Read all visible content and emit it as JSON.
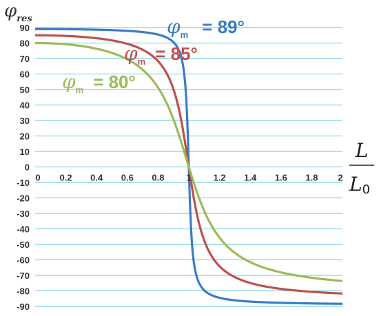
{
  "chart_data": {
    "type": "line",
    "ylabel": {
      "symbol": "φ",
      "subscript": "res"
    },
    "xlabel": {
      "numerator": "L",
      "denominator": "L",
      "denominator_subscript": "0"
    },
    "xlim": [
      0,
      2
    ],
    "ylim": [
      -90,
      90
    ],
    "x_ticks": [
      "0",
      "0.2",
      "0.4",
      "0.6",
      "0.8",
      "1",
      "1.2",
      "1.4",
      "1.6",
      "1.8",
      "2"
    ],
    "y_ticks": [
      "90",
      "80",
      "70",
      "60",
      "50",
      "40",
      "30",
      "20",
      "10",
      "0",
      "-10",
      "-20",
      "-30",
      "-40",
      "-50",
      "-60",
      "-70",
      "-80",
      "-90"
    ],
    "grid": true,
    "series": [
      {
        "name": "φm = 89°",
        "label_symbol": "φ",
        "label_subscript": "m",
        "label_value": "= 89°",
        "phi_m": 89,
        "color": "#3a7cc4",
        "x": [
          0,
          0.2,
          0.4,
          0.6,
          0.8,
          0.9,
          0.95,
          0.98,
          1.0,
          1.02,
          1.05,
          1.1,
          1.2,
          1.4,
          1.6,
          1.8,
          2.0
        ],
        "y": [
          89,
          88.9,
          88.8,
          88.5,
          87.4,
          85.2,
          80.6,
          63.3,
          0,
          -62,
          -78.7,
          -84,
          -86.7,
          -88,
          -88.5,
          -88.7,
          -88.8
        ]
      },
      {
        "name": "φm = 85°",
        "label_symbol": "φ",
        "label_subscript": "m",
        "label_value": "= 85°",
        "phi_m": 85,
        "color": "#c0504d",
        "x": [
          0,
          0.2,
          0.4,
          0.6,
          0.8,
          0.9,
          0.95,
          0.98,
          1.0,
          1.02,
          1.05,
          1.1,
          1.2,
          1.4,
          1.6,
          1.8,
          2.0
        ],
        "y": [
          85,
          84.5,
          83.6,
          81.2,
          72.9,
          59.2,
          39.6,
          17.6,
          0,
          -16.8,
          -36.8,
          -54.5,
          -69.6,
          -78.4,
          -81.4,
          -82.8,
          -83.7
        ]
      },
      {
        "name": "φm = 80°",
        "label_symbol": "φ",
        "label_subscript": "m",
        "label_value": "= 80°",
        "phi_m": 80,
        "color": "#9bbb59",
        "x": [
          0,
          0.2,
          0.4,
          0.6,
          0.8,
          0.9,
          0.95,
          0.98,
          1.0,
          1.02,
          1.05,
          1.1,
          1.2,
          1.4,
          1.6,
          1.8,
          2.0
        ],
        "y": [
          80,
          79,
          77.3,
          72.6,
          58.4,
          40.2,
          22.1,
          9.2,
          0,
          -8.9,
          -20.9,
          -36.3,
          -55.3,
          -69,
          -74.1,
          -76.5,
          -77.9
        ]
      }
    ]
  }
}
